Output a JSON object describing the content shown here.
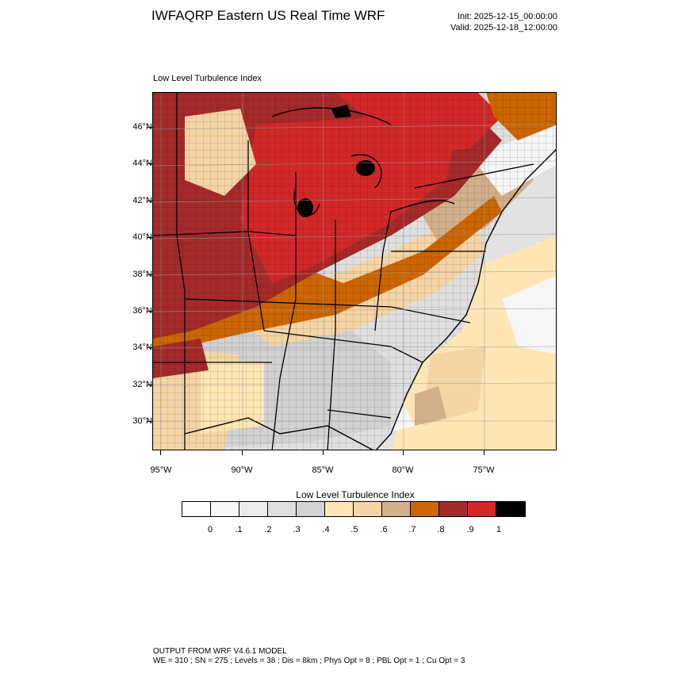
{
  "header": {
    "title": "IWFAQRP Eastern US Real Time WRF",
    "init": "Init: 2025-12-15_00:00:00",
    "valid": "Valid: 2025-12-18_12:00:00"
  },
  "map": {
    "subtitle": "Low Level Turbulence Index",
    "lat_labels": [
      "46°N",
      "44°N",
      "42°N",
      "40°N",
      "38°N",
      "36°N",
      "34°N",
      "32°N",
      "30°N"
    ],
    "lon_labels": [
      "95°W",
      "90°W",
      "85°W",
      "80°W",
      "75°W"
    ]
  },
  "colorbar": {
    "title": "Low Level Turbulence Index",
    "colors": [
      "#ffffff",
      "#f6f6f6",
      "#ececec",
      "#dfdfdf",
      "#d2d2d2",
      "#ffe6b4",
      "#f5d5a5",
      "#d2b08a",
      "#cc6600",
      "#a52a2a",
      "#d22828",
      "#000000"
    ],
    "labels": [
      "0",
      ".1",
      ".2",
      ".3",
      ".4",
      ".5",
      ".6",
      ".7",
      ".8",
      ".9",
      "1"
    ]
  },
  "footer": {
    "line1": "OUTPUT FROM WRF V4.6.1 MODEL",
    "line2": "WE = 310 ; SN = 275 ; Levels = 38 ; Dis = 8km ; Phys Opt = 8 ; PBL Opt = 1 ; Cu Opt = 3"
  }
}
